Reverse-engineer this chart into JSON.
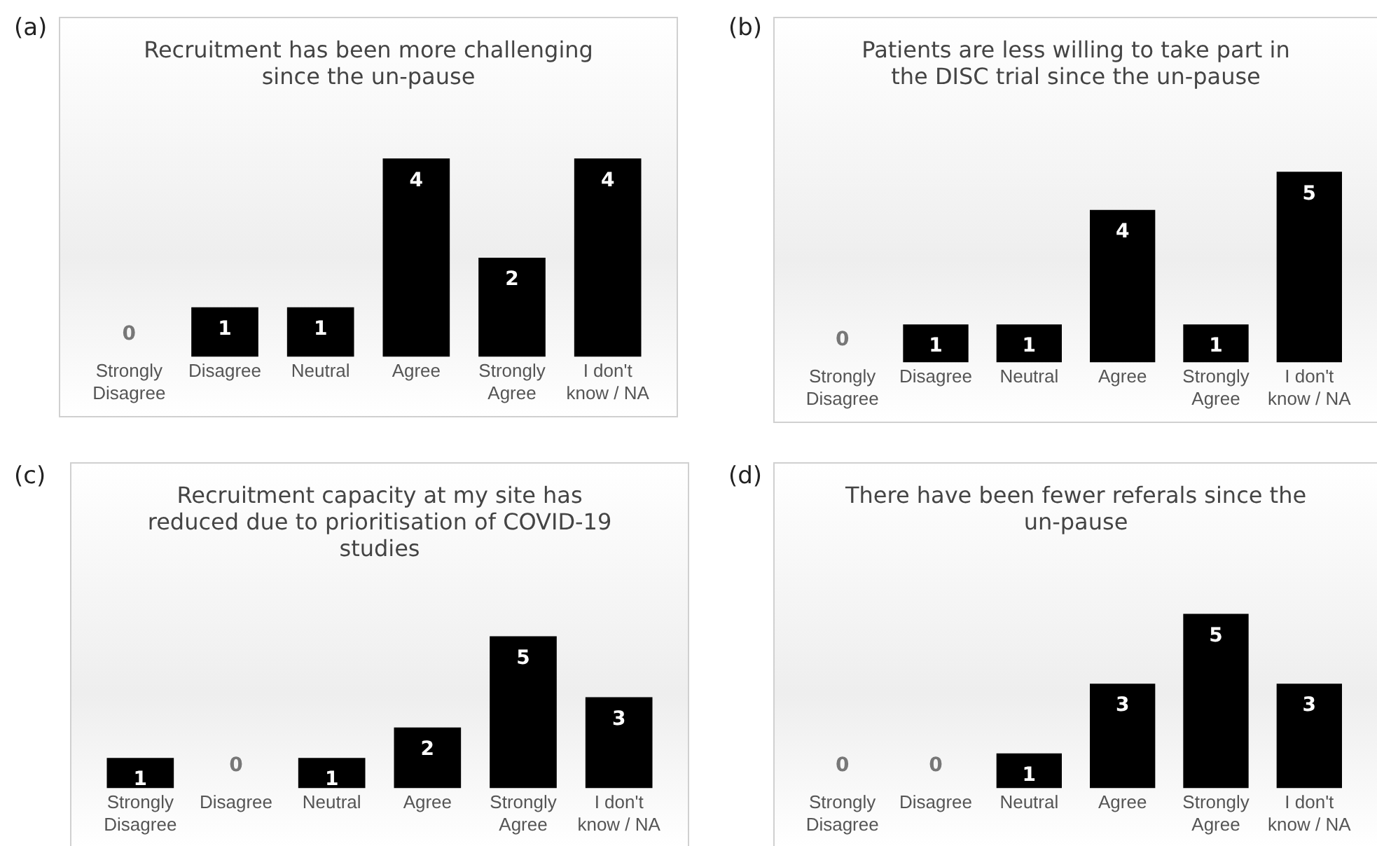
{
  "chart_data": [
    {
      "type": "bar",
      "title": "Recruitment has been more challenging since the un-pause",
      "annotations": [
        "(a)"
      ],
      "categories": [
        "Strongly Disagree",
        "Disagree",
        "Neutral",
        "Agree",
        "Strongly Agree",
        "I don't know / NA"
      ],
      "values": [
        0,
        1,
        1,
        4,
        2,
        4
      ],
      "color": "#000000",
      "data_labels": true,
      "grid": false,
      "legend": false,
      "tick_labels": "x"
    },
    {
      "type": "bar",
      "title": "Patients are less willing to take part in the DISC trial since the un-pause",
      "annotations": [
        "(b)"
      ],
      "categories": [
        "Strongly Disagree",
        "Disagree",
        "Neutral",
        "Agree",
        "Strongly Agree",
        "I don't know / NA"
      ],
      "values": [
        0,
        1,
        1,
        4,
        1,
        5
      ],
      "color": "#000000",
      "data_labels": true,
      "grid": false,
      "legend": false,
      "tick_labels": "x"
    },
    {
      "type": "bar",
      "title": "Recruitment capacity at my site has reduced due to prioritisation of COVID-19 studies",
      "annotations": [
        "(c)"
      ],
      "categories": [
        "Strongly Disagree",
        "Disagree",
        "Neutral",
        "Agree",
        "Strongly Agree",
        "I don't know / NA"
      ],
      "values": [
        1,
        0,
        1,
        2,
        5,
        3
      ],
      "color": "#000000",
      "data_labels": true,
      "grid": false,
      "legend": false,
      "tick_labels": "x"
    },
    {
      "type": "bar",
      "title": "There have been fewer referals since the un-pause",
      "annotations": [
        "(d)"
      ],
      "categories": [
        "Strongly Disagree",
        "Disagree",
        "Neutral",
        "Agree",
        "Strongly Agree",
        "I don't know / NA"
      ],
      "values": [
        0,
        0,
        1,
        3,
        5,
        3
      ],
      "color": "#000000",
      "data_labels": true,
      "grid": false,
      "legend": false,
      "tick_labels": "x"
    }
  ]
}
